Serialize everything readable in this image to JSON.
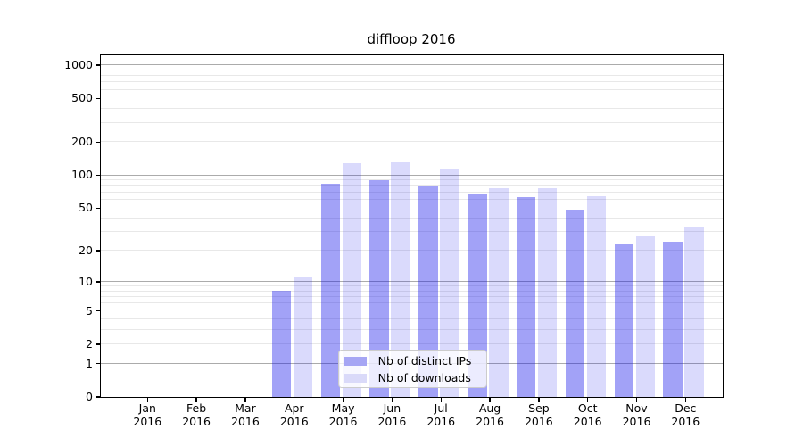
{
  "chart_data": {
    "type": "bar",
    "title": "diffloop 2016",
    "categories": [
      "Jan",
      "Feb",
      "Mar",
      "Apr",
      "May",
      "Jun",
      "Jul",
      "Aug",
      "Sep",
      "Oct",
      "Nov",
      "Dec"
    ],
    "year": "2016",
    "series": [
      {
        "name": "Nb of distinct IPs",
        "color": "#a6a6f4",
        "fill": "rgba(10,10,235,0.38)",
        "values": [
          0,
          0,
          0,
          8,
          83,
          90,
          79,
          66,
          62,
          48,
          23,
          24
        ]
      },
      {
        "name": "Nb of downloads",
        "color": "#dadaf9",
        "fill": "rgba(10,10,235,0.15)",
        "values": [
          0,
          0,
          0,
          11,
          128,
          131,
          111,
          76,
          75,
          64,
          27,
          33
        ]
      }
    ],
    "xlabel": "",
    "ylabel": "",
    "y_scale": "log10(1+v)",
    "y_ticks": [
      0,
      1,
      2,
      5,
      10,
      20,
      50,
      100,
      200,
      500,
      1000
    ],
    "major_gridlines": [
      1,
      10,
      100,
      1000
    ],
    "minor_gridlines": [
      2,
      3,
      4,
      6,
      7,
      8,
      9,
      20,
      30,
      40,
      60,
      70,
      80,
      90,
      200,
      300,
      400,
      600,
      700,
      800,
      900
    ],
    "ylim": [
      0,
      1218
    ],
    "grid": true,
    "legend_position": "lower-center"
  },
  "colors": {
    "background": "#ffffff",
    "axis": "#000000",
    "major_grid": "#ababab",
    "minor_grid": "#e8e8e8",
    "legend_border": "#cccccc"
  }
}
